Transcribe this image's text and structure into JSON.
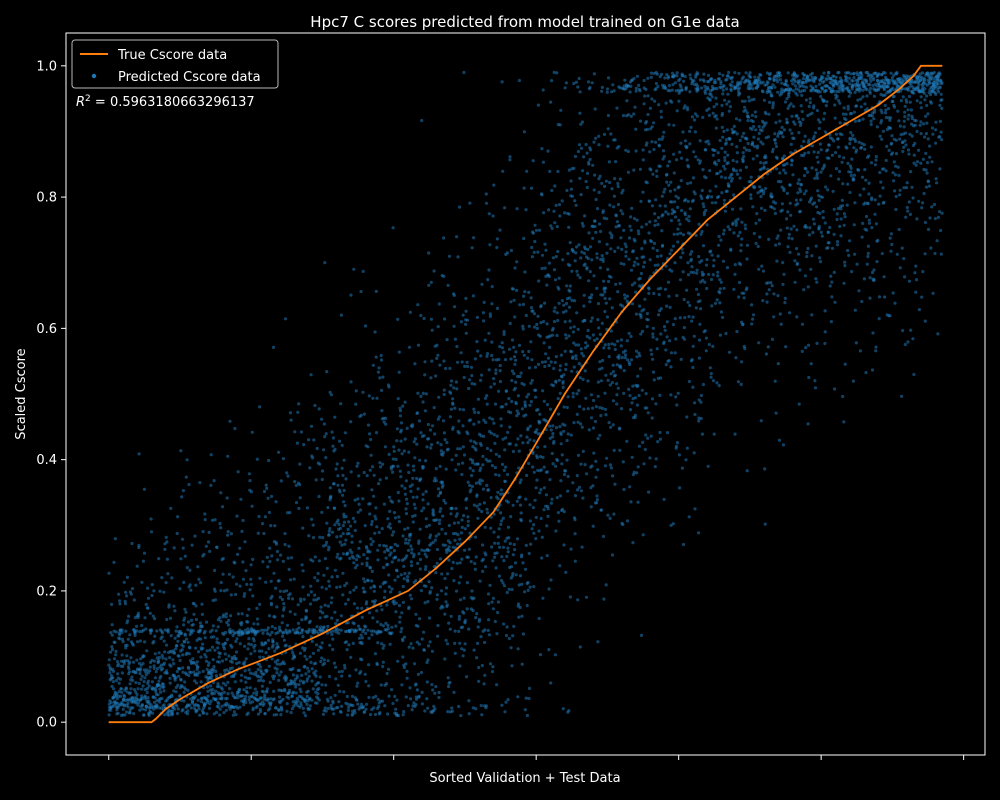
{
  "chart_data": {
    "type": "scatter",
    "title": "Hpc7 C scores predicted from model trained on G1e data",
    "xlabel": "Sorted Validation + Test Data",
    "ylabel": "Scaled Cscore",
    "xlim": [
      -300,
      6150
    ],
    "ylim": [
      -0.05,
      1.05
    ],
    "yticks": [
      0.0,
      0.2,
      0.4,
      0.6,
      0.8,
      1.0
    ],
    "ytick_labels": [
      "0.0",
      "0.2",
      "0.4",
      "0.6",
      "0.8",
      "1.0"
    ],
    "xticks": [
      0,
      1000,
      2000,
      3000,
      4000,
      5000,
      6000
    ],
    "xtick_labels": [
      "",
      "",
      "",
      "",
      "",
      "",
      ""
    ],
    "grid": false,
    "legend_position": "top-left",
    "annotation": {
      "r2_label": "R",
      "r2_sup": "2",
      "r2_value": " = 0.5963180663296137"
    },
    "series": [
      {
        "name": "True Cscore data",
        "kind": "line",
        "color": "#ff7f0e",
        "x": [
          0,
          300,
          330,
          400,
          500,
          700,
          900,
          1200,
          1500,
          1800,
          2100,
          2300,
          2500,
          2700,
          2850,
          3000,
          3200,
          3400,
          3600,
          3800,
          4000,
          4200,
          4400,
          4600,
          4800,
          5000,
          5200,
          5400,
          5550,
          5650,
          5700,
          5750,
          5850
        ],
        "y": [
          0.0,
          0.0,
          0.005,
          0.02,
          0.035,
          0.06,
          0.08,
          0.105,
          0.135,
          0.17,
          0.2,
          0.235,
          0.275,
          0.32,
          0.37,
          0.425,
          0.5,
          0.565,
          0.625,
          0.675,
          0.72,
          0.765,
          0.8,
          0.835,
          0.865,
          0.89,
          0.915,
          0.94,
          0.965,
          0.985,
          1.0,
          1.0,
          1.0
        ]
      },
      {
        "name": "Predicted Cscore data",
        "kind": "scatter",
        "color": "#1f77b4",
        "n_points": 6000,
        "x_range": [
          0,
          5850
        ],
        "trend": "scatter points follow the sorted true Cscore with wide spread; dense cluster 0.0–0.15 on the left, dense 0.6–1.0 on the right; horizontal streak near 0.14 from x≈100 to 2000"
      }
    ]
  }
}
